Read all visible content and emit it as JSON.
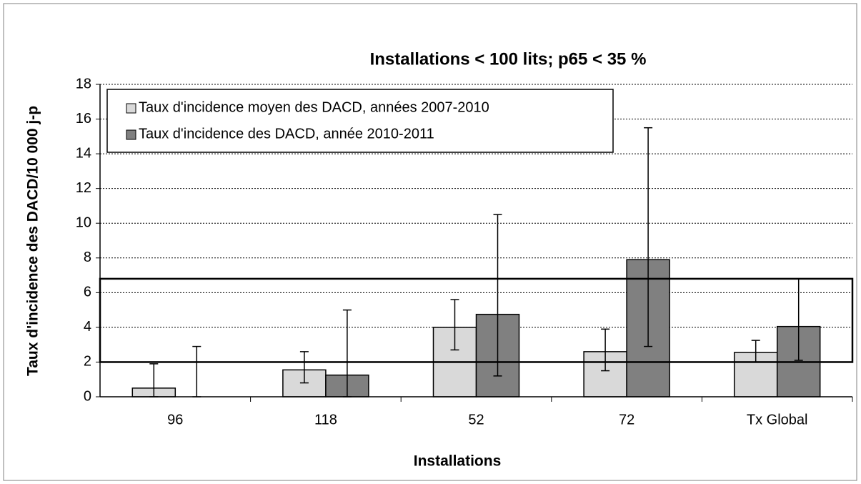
{
  "chart_data": {
    "type": "bar",
    "title": "Installations < 100 lits; p65 < 35 %",
    "x_label": "Installations",
    "y_label": "Taux d'incidence des DACD/10 000 j-p",
    "categories": [
      "96",
      "118",
      "52",
      "72",
      "Tx Global"
    ],
    "series": [
      {
        "name": "Taux d'incidence moyen des DACD, années 2007-2010",
        "color": "#d9d9d9",
        "values": [
          0.5,
          1.55,
          4.0,
          2.6,
          2.55
        ],
        "lower": [
          0,
          0.8,
          2.7,
          1.5,
          2.0
        ],
        "upper": [
          1.9,
          2.6,
          5.6,
          3.9,
          3.25
        ]
      },
      {
        "name": "Taux d'incidence des DACD, année 2010-2011",
        "color": "#808080",
        "values": [
          0,
          1.25,
          4.75,
          7.9,
          4.05
        ],
        "lower": [
          0,
          0,
          1.2,
          2.9,
          2.1
        ],
        "upper": [
          2.9,
          5.0,
          10.5,
          15.5,
          6.8
        ]
      }
    ],
    "reference_band": [
      2,
      6.8
    ],
    "ylim": [
      0,
      18
    ],
    "yticks": [
      0,
      2,
      4,
      6,
      8,
      10,
      12,
      14,
      16,
      18
    ],
    "grid": true,
    "legend": "top-left"
  }
}
